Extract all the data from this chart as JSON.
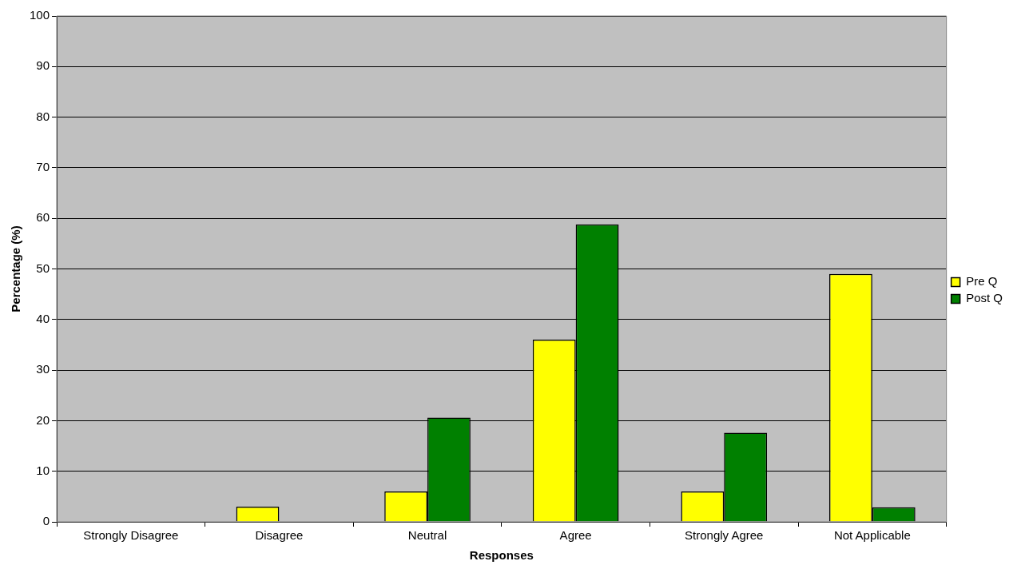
{
  "chart_data": {
    "type": "bar",
    "xlabel": "Responses",
    "ylabel": "Percentage (%)",
    "categories": [
      "Strongly Disagree",
      "Disagree",
      "Neutral",
      "Agree",
      "Strongly Agree",
      "Not Applicable"
    ],
    "series": [
      {
        "name": "Pre Q",
        "color": "#ffff00",
        "values": [
          0,
          3,
          6,
          36,
          6,
          49
        ]
      },
      {
        "name": "Post Q",
        "color": "#008000",
        "values": [
          0,
          0,
          20.6,
          58.8,
          17.6,
          2.9
        ]
      }
    ],
    "ylim": [
      0,
      100
    ],
    "yticks": [
      0,
      10,
      20,
      30,
      40,
      50,
      60,
      70,
      80,
      90,
      100
    ],
    "grid": "y",
    "legend": "right"
  }
}
